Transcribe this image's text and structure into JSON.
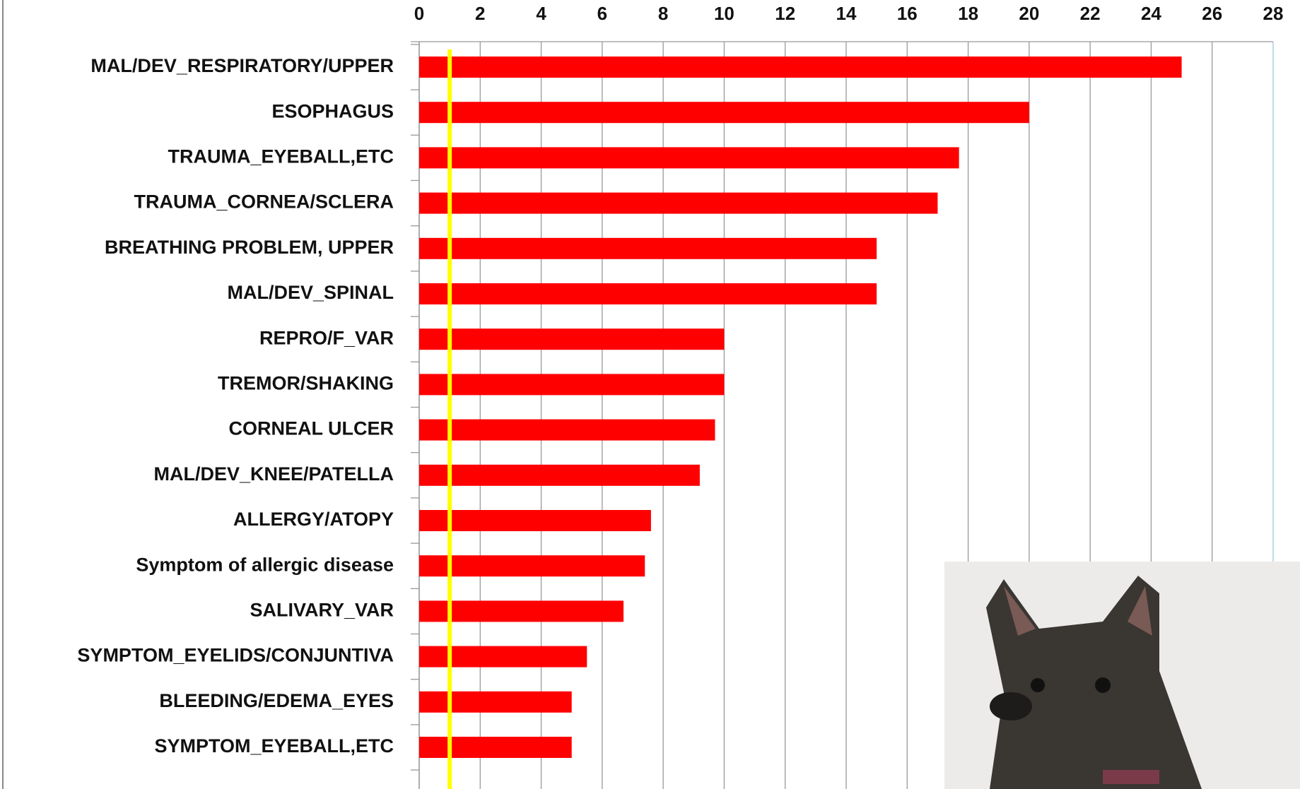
{
  "chart_data": {
    "type": "barh",
    "categories": [
      "MAL/DEV_RESPIRATORY/UPPER",
      "ESOPHAGUS",
      "TRAUMA_EYEBALL,ETC",
      "TRAUMA_CORNEA/SCLERA",
      "BREATHING PROBLEM, UPPER",
      "MAL/DEV_SPINAL",
      "REPRO/F_VAR",
      "TREMOR/SHAKING",
      "CORNEAL ULCER",
      "MAL/DEV_KNEE/PATELLA",
      "ALLERGY/ATOPY",
      "Symptom of allergic disease",
      "SALIVARY_VAR",
      "SYMPTOM_EYELIDS/CONJUNTIVA",
      "BLEEDING/EDEMA_EYES",
      "SYMPTOM_EYEBALL,ETC"
    ],
    "values": [
      25,
      20,
      17.7,
      17,
      15,
      15,
      10,
      10,
      9.7,
      9.2,
      7.6,
      7.4,
      6.7,
      5.5,
      5,
      5
    ],
    "color": "#ff0000",
    "xlim": [
      0,
      28
    ],
    "xticks": [
      0,
      2,
      4,
      6,
      8,
      10,
      12,
      14,
      16,
      18,
      20,
      22,
      24,
      26,
      28
    ],
    "grid": true,
    "reference_line": {
      "value": 1,
      "color": "#ffff00"
    }
  }
}
